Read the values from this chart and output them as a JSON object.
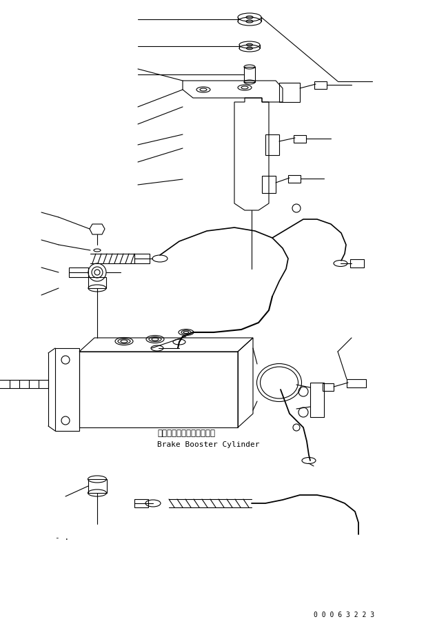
{
  "background_color": "#ffffff",
  "line_color": "#000000",
  "part_number": "0 0 0 6 3 2 2 3",
  "label_jp": "ブレーキブースタシリンダ",
  "label_en": "Brake Booster Cylinder",
  "figsize": [
    6.47,
    9.08
  ],
  "dpi": 100
}
